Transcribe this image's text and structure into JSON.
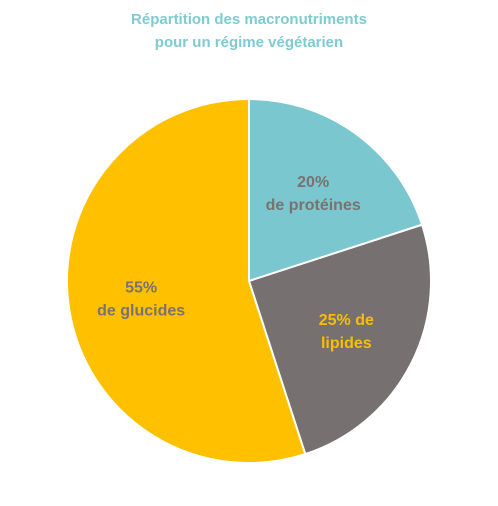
{
  "chart_data": {
    "type": "pie",
    "title": [
      "Répartition des macronutriments",
      "pour un régime végétarien"
    ],
    "slices": [
      {
        "label_lines": [
          "20%",
          "de protéines"
        ],
        "value": 20,
        "color": "#7ac7cf",
        "label_color": "#7a7270"
      },
      {
        "label_lines": [
          "25% de",
          "lipides"
        ],
        "value": 25,
        "color": "#767170",
        "label_color": "#fbbd00"
      },
      {
        "label_lines": [
          "55%",
          "de glucides"
        ],
        "value": 55,
        "color": "#ffc000",
        "label_color": "#7a7270"
      }
    ]
  }
}
